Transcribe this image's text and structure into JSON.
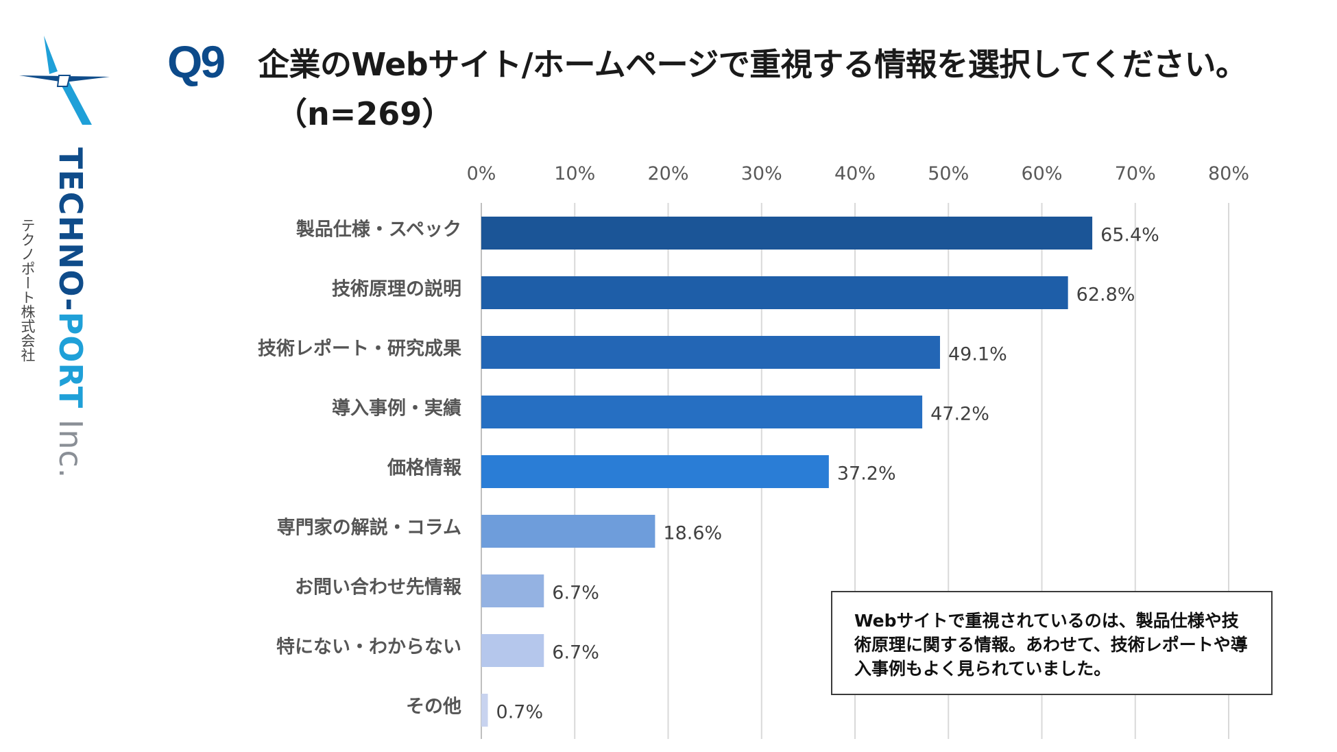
{
  "brand": {
    "name_part1": "TECHNO-",
    "name_part2": "PORT",
    "name_part3": " Inc.",
    "name_jp": "テクノポート株式会社"
  },
  "question": {
    "label": "Q9",
    "title": "企業のWebサイト/ホームページで重視する情報を選択してください。",
    "subtitle": "（n=269）"
  },
  "chart_data": {
    "type": "bar",
    "orientation": "horizontal",
    "categories": [
      "製品仕様・スペック",
      "技術原理の説明",
      "技術レポート・研究成果",
      "導入事例・実績",
      "価格情報",
      "専門家の解説・コラム",
      "お問い合わせ先情報",
      "特にない・わからない",
      "その他"
    ],
    "values": [
      65.4,
      62.8,
      49.1,
      47.2,
      37.2,
      18.6,
      6.7,
      6.7,
      0.7
    ],
    "value_labels": [
      "65.4%",
      "62.8%",
      "49.1%",
      "47.2%",
      "37.2%",
      "18.6%",
      "6.7%",
      "6.7%",
      "0.7%"
    ],
    "bar_colors": [
      "#1b5597",
      "#1e5ea8",
      "#2366b5",
      "#266fc2",
      "#2a7dd6",
      "#6e9ddb",
      "#94b2e2",
      "#b5c7ec",
      "#c8d3ef"
    ],
    "xaxis": {
      "ticks": [
        0,
        10,
        20,
        30,
        40,
        50,
        60,
        70,
        80
      ],
      "tick_labels": [
        "0%",
        "10%",
        "20%",
        "30%",
        "40%",
        "50%",
        "60%",
        "70%",
        "80%"
      ],
      "range": [
        0,
        80
      ],
      "position": "top"
    },
    "grid": true,
    "legend": "none"
  },
  "note": {
    "text": "Webサイトで重視されているのは、製品仕様や技術原理に関する情報。あわせて、技術レポートや導入事例もよく見られていました。"
  }
}
